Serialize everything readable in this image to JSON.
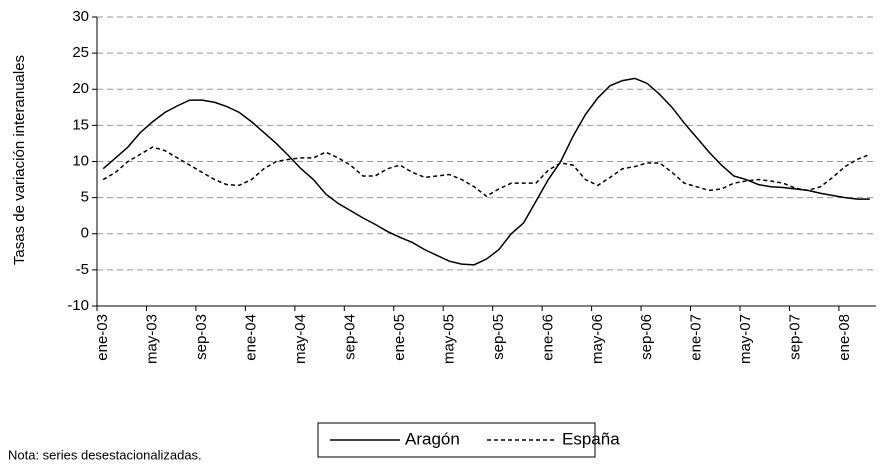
{
  "chart_data": {
    "type": "line",
    "ylabel": "Tasas de variación interanuales",
    "note": "Nota: series desestacionalizadas.",
    "categories": [
      "ene-03",
      null,
      null,
      null,
      "may-03",
      null,
      null,
      null,
      "sep-03",
      null,
      null,
      null,
      "ene-04",
      null,
      null,
      null,
      "may-04",
      null,
      null,
      null,
      "sep-04",
      null,
      null,
      null,
      "ene-05",
      null,
      null,
      null,
      "may-05",
      null,
      null,
      null,
      "sep-05",
      null,
      null,
      null,
      "ene-06",
      null,
      null,
      null,
      "may-06",
      null,
      null,
      null,
      "sep-06",
      null,
      null,
      null,
      "ene-07",
      null,
      null,
      null,
      "may-07",
      null,
      null,
      null,
      "sep-07",
      null,
      null,
      null,
      "ene-08",
      null,
      null
    ],
    "series": [
      {
        "name": "Aragón",
        "color": "#000000",
        "dash": "solid",
        "values": [
          9,
          10.5,
          12,
          14,
          15.5,
          16.8,
          17.7,
          18.5,
          18.5,
          18.2,
          17.6,
          16.8,
          15.5,
          14,
          12.5,
          10.8,
          9,
          7.5,
          5.5,
          4.2,
          3.2,
          2.2,
          1.3,
          0.3,
          -0.5,
          -1.2,
          -2.2,
          -3,
          -3.8,
          -4.2,
          -4.3,
          -3.5,
          -2.2,
          0,
          1.5,
          4.5,
          7.5,
          10,
          13.5,
          16.5,
          18.8,
          20.5,
          21.2,
          21.5,
          20.8,
          19.3,
          17.5,
          15.3,
          13.3,
          11.3,
          9.5,
          8,
          7.5,
          6.8,
          6.5,
          6.4,
          6.2,
          6,
          5.6,
          5.3,
          5,
          4.8,
          4.8
        ]
      },
      {
        "name": "España",
        "color": "#000000",
        "dash": "dashed",
        "values": [
          7.5,
          8.5,
          10,
          11,
          12,
          11.5,
          10.5,
          9.5,
          8.5,
          7.5,
          6.8,
          6.7,
          7.5,
          9,
          10,
          10.3,
          10.5,
          10.5,
          11.3,
          10.5,
          9.5,
          8,
          8,
          9,
          9.5,
          8.5,
          7.8,
          8,
          8.2,
          7.5,
          6.5,
          5.2,
          6.2,
          7,
          7,
          7,
          8.8,
          9.8,
          9.5,
          7.5,
          6.7,
          7.8,
          9,
          9.3,
          9.8,
          9.8,
          8.5,
          7,
          6.5,
          6,
          6.2,
          7,
          7.3,
          7.5,
          7.3,
          7,
          6.3,
          6,
          6.5,
          7.8,
          9.3,
          10.3,
          11
        ]
      }
    ],
    "ylim": [
      -10,
      30
    ],
    "yticks": [
      -10,
      -5,
      0,
      5,
      10,
      15,
      20,
      25,
      30
    ],
    "grid": true,
    "legend": "bottom"
  }
}
